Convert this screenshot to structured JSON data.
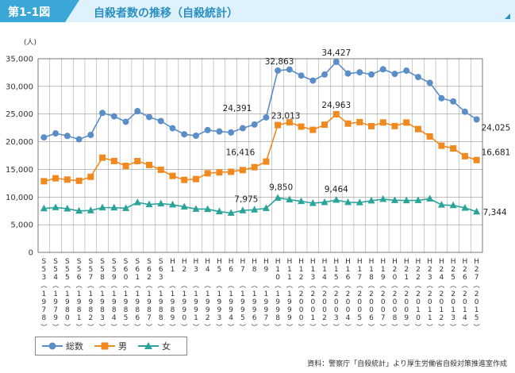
{
  "header": {
    "figure_no": "第1-1図",
    "title": "自殺者数の推移（自殺統計）"
  },
  "source": "資料：警察庁「自殺統計」より厚生労働省自殺対策推進室作成",
  "colors": {
    "total": "#5b8ec9",
    "male": "#f08a1f",
    "female": "#2aa39a",
    "grid": "#999999",
    "accent": "#3aa7d6"
  },
  "chart_data": {
    "type": "line",
    "ylabel": "(人)",
    "ylim": [
      0,
      35000
    ],
    "yticks": [
      "0",
      "5,000",
      "10,000",
      "15,000",
      "20,000",
      "25,000",
      "30,000",
      "35,000"
    ],
    "categories": [
      {
        "era": "S53",
        "year": "1978"
      },
      {
        "era": "S54",
        "year": "1979"
      },
      {
        "era": "S55",
        "year": "1980"
      },
      {
        "era": "S56",
        "year": "1981"
      },
      {
        "era": "S57",
        "year": "1982"
      },
      {
        "era": "S58",
        "year": "1983"
      },
      {
        "era": "S59",
        "year": "1984"
      },
      {
        "era": "S60",
        "year": "1985"
      },
      {
        "era": "S61",
        "year": "1986"
      },
      {
        "era": "S62",
        "year": "1987"
      },
      {
        "era": "S63",
        "year": "1988"
      },
      {
        "era": "H1",
        "year": "1989"
      },
      {
        "era": "H2",
        "year": "1990"
      },
      {
        "era": "H3",
        "year": "1991"
      },
      {
        "era": "H4",
        "year": "1992"
      },
      {
        "era": "H5",
        "year": "1993"
      },
      {
        "era": "H6",
        "year": "1994"
      },
      {
        "era": "H7",
        "year": "1995"
      },
      {
        "era": "H8",
        "year": "1996"
      },
      {
        "era": "H9",
        "year": "1997"
      },
      {
        "era": "H10",
        "year": "1998"
      },
      {
        "era": "H11",
        "year": "1999"
      },
      {
        "era": "H12",
        "year": "2000"
      },
      {
        "era": "H13",
        "year": "2001"
      },
      {
        "era": "H14",
        "year": "2002"
      },
      {
        "era": "H15",
        "year": "2003"
      },
      {
        "era": "H16",
        "year": "2004"
      },
      {
        "era": "H17",
        "year": "2005"
      },
      {
        "era": "H18",
        "year": "2006"
      },
      {
        "era": "H19",
        "year": "2007"
      },
      {
        "era": "H20",
        "year": "2008"
      },
      {
        "era": "H21",
        "year": "2009"
      },
      {
        "era": "H22",
        "year": "2010"
      },
      {
        "era": "H23",
        "year": "2011"
      },
      {
        "era": "H24",
        "year": "2012"
      },
      {
        "era": "H25",
        "year": "2013"
      },
      {
        "era": "H26",
        "year": "2014"
      },
      {
        "era": "H27",
        "year": "2015"
      }
    ],
    "series": [
      {
        "name": "総数",
        "key": "total",
        "values": [
          20788,
          21503,
          21048,
          20434,
          21228,
          25202,
          24596,
          23599,
          25524,
          24460,
          23742,
          22436,
          21346,
          21084,
          22104,
          21851,
          21679,
          22445,
          23104,
          24391,
          32863,
          33048,
          31957,
          31042,
          32143,
          34427,
          32325,
          32552,
          32155,
          33093,
          32249,
          32845,
          31690,
          30651,
          27858,
          27283,
          25427,
          24025
        ]
      },
      {
        "name": "男",
        "key": "male",
        "values": [
          12859,
          13386,
          13155,
          12942,
          13654,
          17116,
          16508,
          15624,
          16497,
          15802,
          14934,
          13818,
          13102,
          13242,
          14296,
          14468,
          14560,
          14874,
          15393,
          16416,
          23013,
          23512,
          22727,
          22144,
          23080,
          24963,
          23272,
          23540,
          22813,
          23478,
          22831,
          23472,
          22283,
          20955,
          19273,
          18787,
          17386,
          16681
        ]
      },
      {
        "name": "女",
        "key": "female",
        "values": [
          7929,
          8117,
          7893,
          7492,
          7574,
          8086,
          8088,
          7975,
          9027,
          8658,
          8808,
          8618,
          8244,
          7842,
          7808,
          7383,
          7119,
          7571,
          7711,
          7975,
          9850,
          9536,
          9230,
          8898,
          9063,
          9464,
          9053,
          9012,
          9342,
          9615,
          9418,
          9373,
          9407,
          9696,
          8585,
          8496,
          8041,
          7344
        ]
      }
    ],
    "annotations": [
      {
        "series": "total",
        "category": "H9",
        "label": "24,391"
      },
      {
        "series": "total",
        "category": "H10",
        "label": "32,863"
      },
      {
        "series": "total",
        "category": "H15",
        "label": "34,427"
      },
      {
        "series": "total",
        "category": "H27",
        "label": "24,025"
      },
      {
        "series": "male",
        "category": "H9",
        "label": "16,416"
      },
      {
        "series": "male",
        "category": "H10",
        "label": "23,013"
      },
      {
        "series": "male",
        "category": "H15",
        "label": "24,963"
      },
      {
        "series": "male",
        "category": "H27",
        "label": "16,681"
      },
      {
        "series": "female",
        "category": "H9",
        "label": "7,975"
      },
      {
        "series": "female",
        "category": "H10",
        "label": "9,850"
      },
      {
        "series": "female",
        "category": "H15",
        "label": "9,464"
      },
      {
        "series": "female",
        "category": "H27",
        "label": "7,344"
      }
    ]
  }
}
